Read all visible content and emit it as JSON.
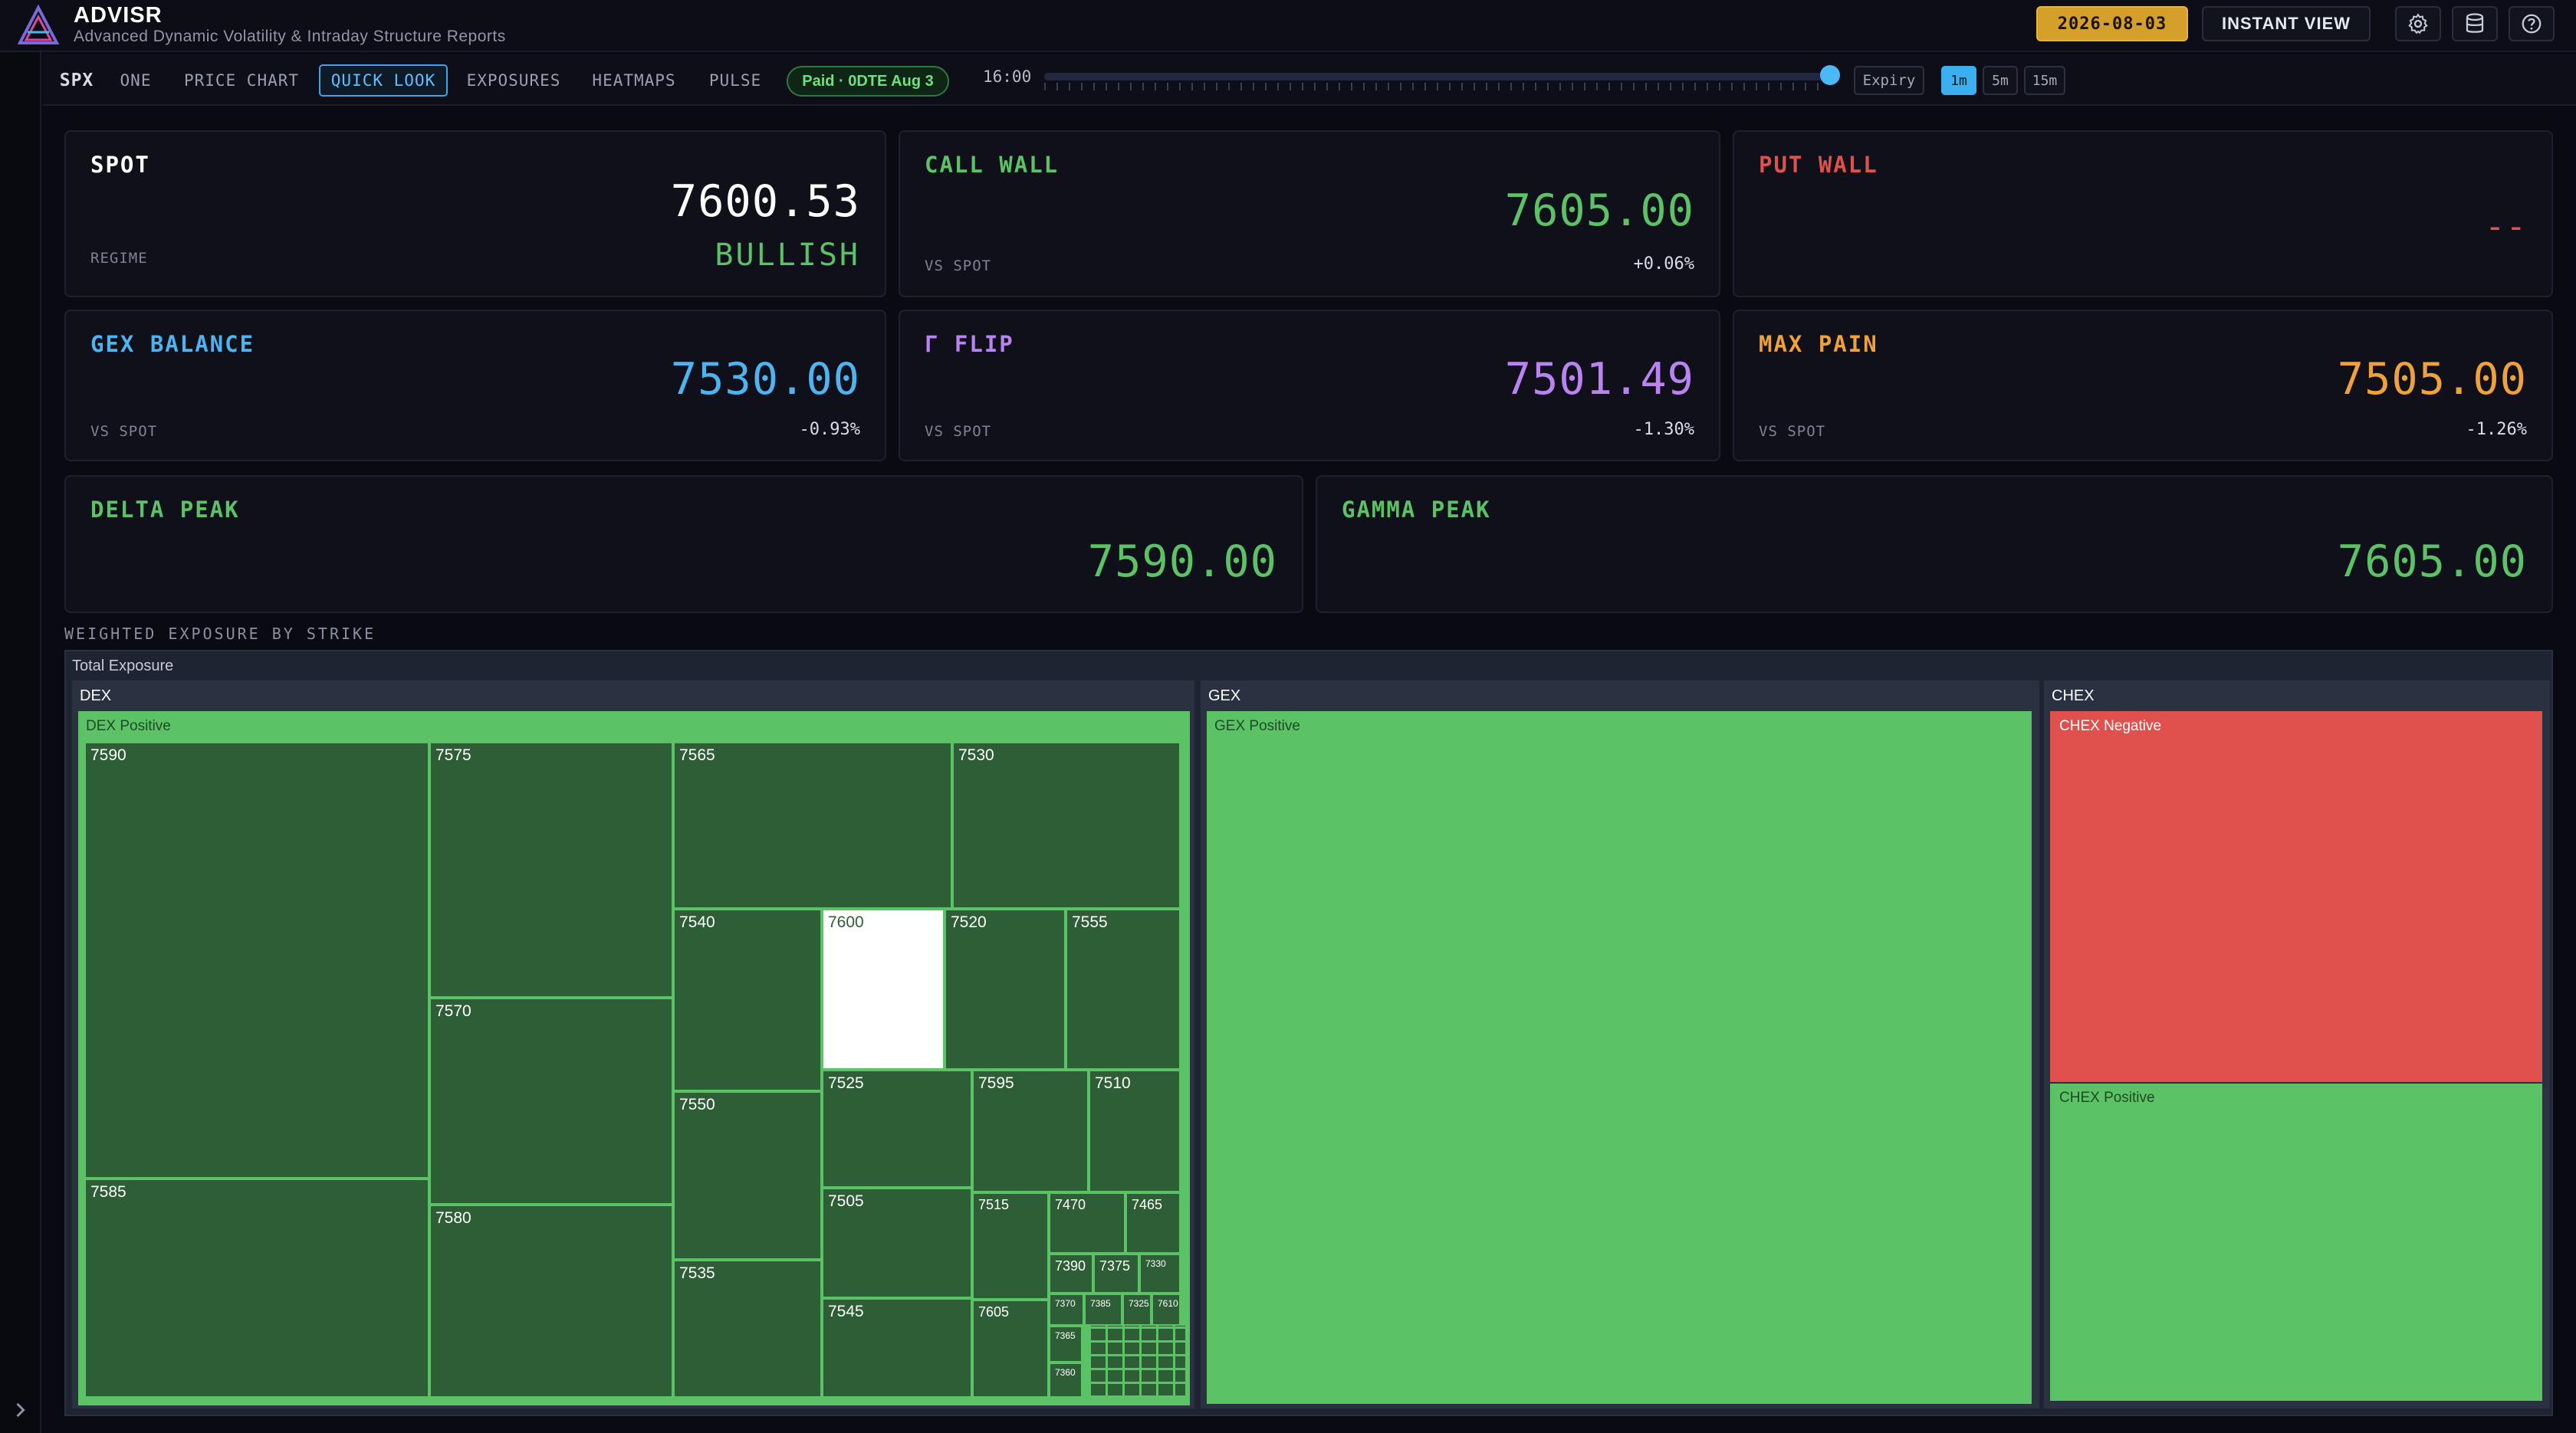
{
  "app": {
    "title": "ADVISR",
    "subtitle": "Advanced Dynamic Volatility & Intraday Structure Reports"
  },
  "header": {
    "date": "2026-08-03",
    "instant_view": "INSTANT VIEW",
    "icons": [
      "gear-icon",
      "database-icon",
      "help-icon"
    ]
  },
  "toolbar": {
    "symbol": "SPX",
    "tabs": [
      "ONE",
      "PRICE CHART",
      "QUICK LOOK",
      "EXPOSURES",
      "HEATMAPS",
      "PULSE"
    ],
    "active_tab": "QUICK LOOK",
    "badge": "Paid · 0DTE Aug 3",
    "time": "16:00",
    "slider_position": 1.0,
    "expiry": "Expiry",
    "timeframes": [
      "1m",
      "5m",
      "15m"
    ],
    "active_timeframe": "1m"
  },
  "metrics": {
    "spot": {
      "title": "SPOT",
      "value": "7600.53",
      "sub": "REGIME",
      "regime": "BULLISH"
    },
    "call_wall": {
      "title": "CALL WALL",
      "value": "7605.00",
      "sub": "VS SPOT",
      "change": "+0.06%"
    },
    "put_wall": {
      "title": "PUT WALL",
      "value": "--"
    },
    "gex_balance": {
      "title": "GEX BALANCE",
      "value": "7530.00",
      "sub": "VS SPOT",
      "change": "-0.93%"
    },
    "gamma_flip": {
      "title": "Γ FLIP",
      "value": "7501.49",
      "sub": "VS SPOT",
      "change": "-1.30%"
    },
    "max_pain": {
      "title": "MAX PAIN",
      "value": "7505.00",
      "sub": "VS SPOT",
      "change": "-1.26%"
    },
    "delta_peak": {
      "title": "DELTA PEAK",
      "value": "7590.00"
    },
    "gamma_peak": {
      "title": "GAMMA PEAK",
      "value": "7605.00"
    }
  },
  "colors": {
    "spot": "#ffffff",
    "call_wall": "#5cc266",
    "put_wall": "#e0504d",
    "gex_balance": "#4fb3ef",
    "gamma_flip": "#b983f0",
    "max_pain": "#f0a23a",
    "positive": "#5cc266",
    "negative": "#e0504d"
  },
  "exposure": {
    "section_title": "WEIGHTED EXPOSURE BY STRIKE",
    "root_label": "Total Exposure",
    "dex": {
      "label": "DEX",
      "sub_label": "DEX Positive",
      "strikes": [
        "7590",
        "7585",
        "7575",
        "7570",
        "7580",
        "7565",
        "7530",
        "7540",
        "7600",
        "7520",
        "7555",
        "7550",
        "7525",
        "7595",
        "7510",
        "7535",
        "7505",
        "7515",
        "7470",
        "7465",
        "7390",
        "7375",
        "7330",
        "7545",
        "7605",
        "7370",
        "7385",
        "7325",
        "7610",
        "7365",
        "7360"
      ]
    },
    "gex": {
      "label": "GEX",
      "sub_label": "GEX Positive"
    },
    "chex": {
      "label": "CHEX",
      "negative_label": "CHEX Negative",
      "positive_label": "CHEX Positive"
    }
  }
}
